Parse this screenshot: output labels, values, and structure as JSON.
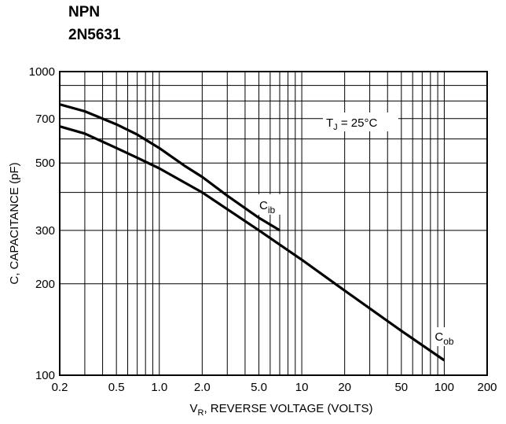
{
  "header": {
    "line1": "NPN",
    "line2": "2N5631"
  },
  "chart_data": {
    "type": "line",
    "title": "",
    "xlabel": {
      "main": "V",
      "sub": "R",
      "rest": ", REVERSE VOLTAGE (VOLTS)"
    },
    "ylabel": "C, CAPACITANCE (pF)",
    "xscale": "log",
    "yscale": "log",
    "xlim": [
      0.2,
      200
    ],
    "ylim": [
      100,
      1000
    ],
    "grid": true,
    "x_ticks": [
      {
        "value": 0.2,
        "label": "0.2"
      },
      {
        "value": 0.5,
        "label": "0.5"
      },
      {
        "value": 1,
        "label": "1.0"
      },
      {
        "value": 2,
        "label": "2.0"
      },
      {
        "value": 5,
        "label": "5.0"
      },
      {
        "value": 10,
        "label": "10"
      },
      {
        "value": 20,
        "label": "20"
      },
      {
        "value": 50,
        "label": "50"
      },
      {
        "value": 100,
        "label": "100"
      },
      {
        "value": 200,
        "label": "200"
      }
    ],
    "y_ticks": [
      {
        "value": 100,
        "label": "100"
      },
      {
        "value": 200,
        "label": "200"
      },
      {
        "value": 300,
        "label": "300"
      },
      {
        "value": 500,
        "label": "500"
      },
      {
        "value": 700,
        "label": "700"
      },
      {
        "value": 1000,
        "label": "1000"
      }
    ],
    "annotation": {
      "main": "T",
      "sub": "J",
      "rest": " = 25°C"
    },
    "series": [
      {
        "name": "C_ib",
        "label_main": "C",
        "label_sub": "ib",
        "x": [
          0.2,
          0.3,
          0.5,
          0.7,
          1.0,
          1.5,
          2.0,
          3.0,
          5.0,
          7.0
        ],
        "y": [
          780,
          740,
          670,
          620,
          560,
          490,
          450,
          390,
          330,
          300
        ]
      },
      {
        "name": "C_ob",
        "label_main": "C",
        "label_sub": "ob",
        "x": [
          0.2,
          0.3,
          0.5,
          0.7,
          1.0,
          2.0,
          5.0,
          10,
          20,
          50,
          100
        ],
        "y": [
          660,
          625,
          560,
          520,
          480,
          400,
          300,
          240,
          190,
          140,
          112
        ]
      }
    ],
    "colors": {
      "line": "#000000",
      "grid": "#000000",
      "background": "#ffffff"
    }
  }
}
